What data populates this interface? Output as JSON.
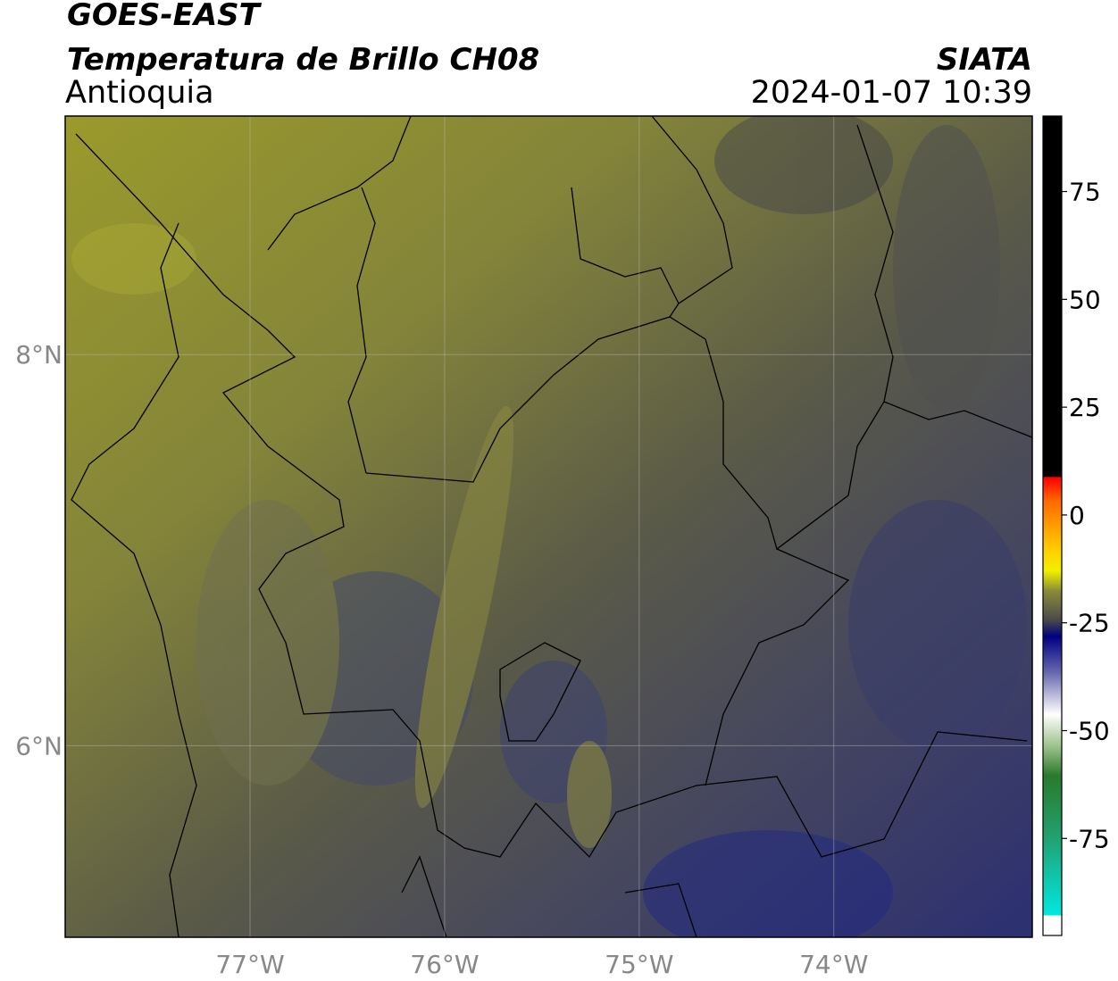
{
  "header": {
    "satellite": "GOES-EAST",
    "product": "Temperatura de Brillo CH08",
    "region": "Antioquia",
    "source": "SIATA",
    "datetime": "2024-01-07 10:39"
  },
  "map": {
    "xlim": [
      -77.95,
      -72.98
    ],
    "ylim": [
      5.02,
      9.22
    ],
    "xticks": [
      {
        "value": -77,
        "label": "77°W"
      },
      {
        "value": -76,
        "label": "76°W"
      },
      {
        "value": -75,
        "label": "75°W"
      },
      {
        "value": -74,
        "label": "74°W"
      }
    ],
    "yticks": [
      {
        "value": 6,
        "label": "6°N"
      },
      {
        "value": 8,
        "label": "8°N"
      }
    ],
    "grid": true
  },
  "colorbar": {
    "lim": [
      -97.5,
      92.5
    ],
    "ticks": [
      -75,
      -50,
      -25,
      0,
      25,
      50,
      75
    ]
  }
}
